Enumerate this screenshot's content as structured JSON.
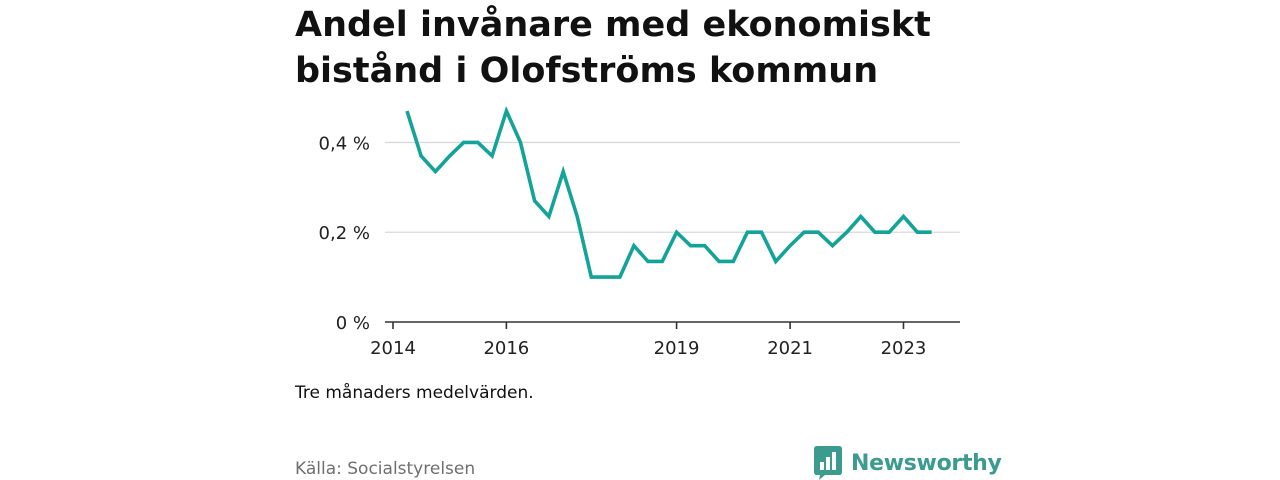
{
  "title": "Andel invånare med ekonomiskt bistånd i Olofströms kommun",
  "caption": "Tre månaders medelvärden.",
  "source": "Källa: Socialstyrelsen",
  "brand": {
    "name": "Newsworthy",
    "icon": "newsworthy-logo-icon",
    "color": "#3b9b8f"
  },
  "chart_data": {
    "type": "line",
    "title": "",
    "xlabel": "",
    "ylabel": "",
    "line_color": "#13a399",
    "grid": true,
    "legend": "none",
    "xlim": [
      "2014-01-01",
      "2023-12-31"
    ],
    "ylim": [
      0,
      0.47
    ],
    "y_ticks": [
      0,
      0.2,
      0.4
    ],
    "y_tick_labels": [
      "0 %",
      "0,2 %",
      "0,4 %"
    ],
    "x_ticks": [
      "2014-01-01",
      "2016-01-01",
      "2019-01-01",
      "2021-01-01",
      "2023-01-01"
    ],
    "x_tick_labels": [
      "2014",
      "2016",
      "2019",
      "2021",
      "2023"
    ],
    "series": [
      {
        "points": [
          {
            "x": "2014-04-01",
            "y": 0.47
          },
          {
            "x": "2014-07-01",
            "y": 0.37
          },
          {
            "x": "2014-10-01",
            "y": 0.335
          },
          {
            "x": "2015-01-01",
            "y": 0.37
          },
          {
            "x": "2015-04-01",
            "y": 0.4
          },
          {
            "x": "2015-07-01",
            "y": 0.4
          },
          {
            "x": "2015-10-01",
            "y": 0.37
          },
          {
            "x": "2016-01-01",
            "y": 0.47
          },
          {
            "x": "2016-04-01",
            "y": 0.4
          },
          {
            "x": "2016-07-01",
            "y": 0.27
          },
          {
            "x": "2016-10-01",
            "y": 0.235
          },
          {
            "x": "2017-01-01",
            "y": 0.335
          },
          {
            "x": "2017-04-01",
            "y": 0.235
          },
          {
            "x": "2017-07-01",
            "y": 0.1
          },
          {
            "x": "2017-10-01",
            "y": 0.1
          },
          {
            "x": "2018-01-01",
            "y": 0.1
          },
          {
            "x": "2018-04-01",
            "y": 0.17
          },
          {
            "x": "2018-07-01",
            "y": 0.135
          },
          {
            "x": "2018-10-01",
            "y": 0.135
          },
          {
            "x": "2019-01-01",
            "y": 0.2
          },
          {
            "x": "2019-04-01",
            "y": 0.17
          },
          {
            "x": "2019-07-01",
            "y": 0.17
          },
          {
            "x": "2019-10-01",
            "y": 0.135
          },
          {
            "x": "2020-01-01",
            "y": 0.135
          },
          {
            "x": "2020-04-01",
            "y": 0.2
          },
          {
            "x": "2020-07-01",
            "y": 0.2
          },
          {
            "x": "2020-10-01",
            "y": 0.135
          },
          {
            "x": "2021-01-01",
            "y": 0.17
          },
          {
            "x": "2021-04-01",
            "y": 0.2
          },
          {
            "x": "2021-07-01",
            "y": 0.2
          },
          {
            "x": "2021-10-01",
            "y": 0.17
          },
          {
            "x": "2022-01-01",
            "y": 0.2
          },
          {
            "x": "2022-04-01",
            "y": 0.235
          },
          {
            "x": "2022-07-01",
            "y": 0.2
          },
          {
            "x": "2022-10-01",
            "y": 0.2
          },
          {
            "x": "2023-01-01",
            "y": 0.235
          },
          {
            "x": "2023-04-01",
            "y": 0.2
          },
          {
            "x": "2023-07-01",
            "y": 0.2
          }
        ]
      }
    ]
  }
}
